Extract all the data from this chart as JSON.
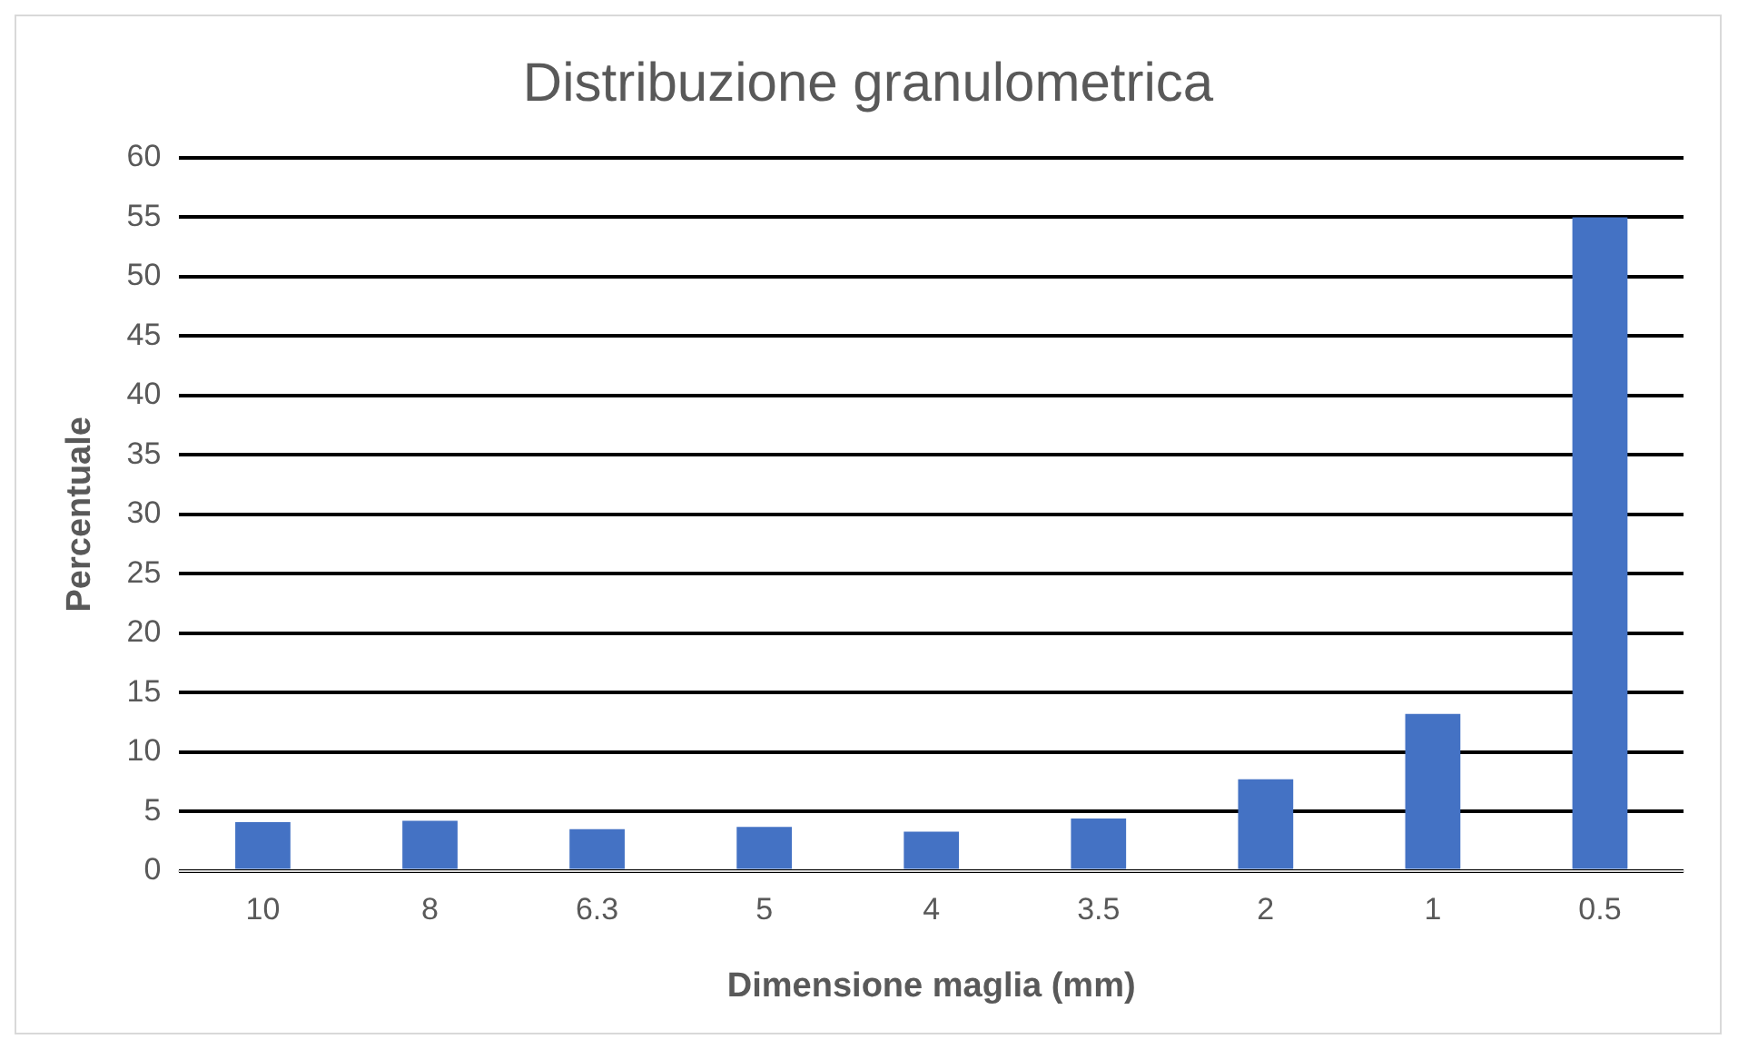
{
  "chart_data": {
    "type": "bar",
    "title": "Distribuzione granulometrica",
    "xlabel": "Dimensione maglia (mm)",
    "ylabel": "Percentuale",
    "categories": [
      "10",
      "8",
      "6.3",
      "5",
      "4",
      "3.5",
      "2",
      "1",
      "0.5"
    ],
    "values": [
      4.1,
      4.2,
      3.5,
      3.7,
      3.3,
      4.4,
      7.7,
      13.2,
      55
    ],
    "color": "#4472c4",
    "ylim": [
      0,
      60
    ],
    "yticks": [
      0,
      5,
      10,
      15,
      20,
      25,
      30,
      35,
      40,
      45,
      50,
      55,
      60
    ],
    "grid": "y"
  }
}
